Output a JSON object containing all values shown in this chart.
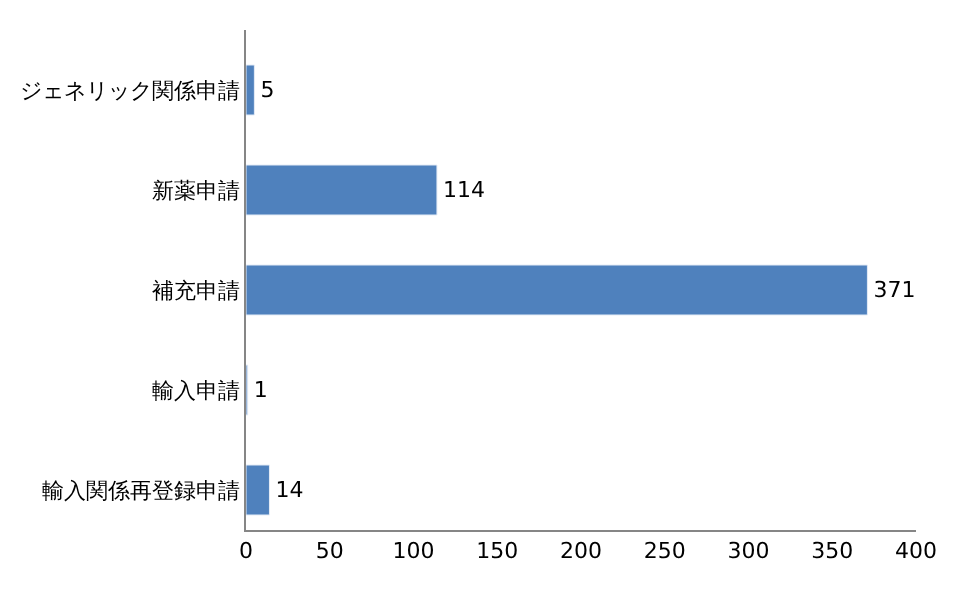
{
  "chart_data": {
    "type": "bar",
    "orientation": "horizontal",
    "categories": [
      "ジェネリック関係申請",
      "新薬申請",
      "補充申請",
      "輸入申請",
      "輸入関係再登録申請"
    ],
    "values": [
      5,
      114,
      371,
      1,
      14
    ],
    "color": "#4f81bd",
    "xlim": [
      0,
      400
    ],
    "xticks": [
      0,
      50,
      100,
      150,
      200,
      250,
      300,
      350,
      400
    ],
    "legend": false,
    "data_labels": true
  }
}
